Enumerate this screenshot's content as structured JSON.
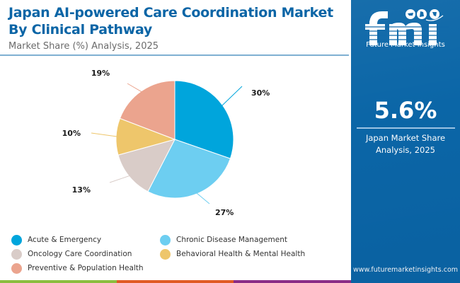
{
  "header": {
    "title": "Japan AI-powered Care Coordination Market By Clinical Pathway",
    "subtitle": "Market Share (%) Analysis, 2025"
  },
  "chart_data": {
    "type": "pie",
    "title": "Japan AI-powered Care Coordination Market By Clinical Pathway",
    "subtitle": "Market Share (%) Analysis, 2025",
    "unit": "%",
    "start_angle": "12 o'clock",
    "direction": "clockwise",
    "legend_position": "bottom",
    "slices": [
      {
        "label": "Acute & Emergency",
        "value": 30,
        "display": "30%",
        "color": "#00a5dc"
      },
      {
        "label": "Chronic Disease Management",
        "value": 27,
        "display": "27%",
        "color": "#6dcef1"
      },
      {
        "label": "Oncology Care Coordination",
        "value": 13,
        "display": "13%",
        "color": "#d9ccc8"
      },
      {
        "label": "Behavioral Health & Mental Health",
        "value": 10,
        "display": "10%",
        "color": "#eec66b"
      },
      {
        "label": "Preventive & Population Health",
        "value": 19,
        "display": "19%",
        "color": "#eba48e"
      }
    ]
  },
  "sidebar": {
    "logo_text": "Future Market Insights",
    "highlight_value": "5.6%",
    "highlight_caption_line1": "Japan Market Share",
    "highlight_caption_line2": "Analysis, 2025",
    "website": "www.futuremarketinsights.com",
    "background_color": "#0b66a7"
  },
  "bottom_bar_colors": [
    "#8bbd3e",
    "#e05a24",
    "#8a2c86"
  ]
}
